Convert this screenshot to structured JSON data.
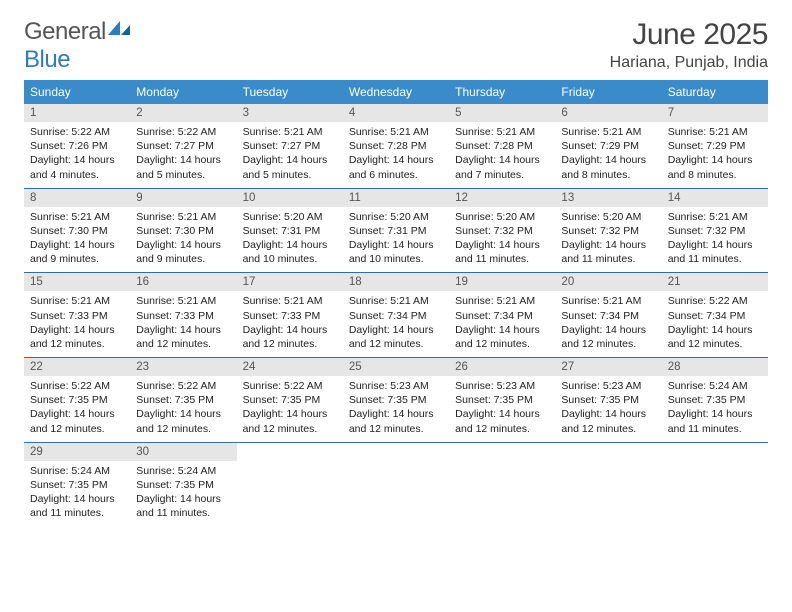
{
  "brand": {
    "part1": "General",
    "part2": "Blue"
  },
  "title": "June 2025",
  "subtitle": "Hariana, Punjab, India",
  "colors": {
    "header_bg": "#3a8bc9",
    "header_text": "#ffffff",
    "daynum_bg": "#e6e6e6",
    "divider": "#2f6fa8",
    "logo_gray": "#555555",
    "logo_blue": "#2f7bbf"
  },
  "weekdays": [
    "Sunday",
    "Monday",
    "Tuesday",
    "Wednesday",
    "Thursday",
    "Friday",
    "Saturday"
  ],
  "weeks": [
    [
      {
        "n": "1",
        "sr": "Sunrise: 5:22 AM",
        "ss": "Sunset: 7:26 PM",
        "dl": "Daylight: 14 hours and 4 minutes."
      },
      {
        "n": "2",
        "sr": "Sunrise: 5:22 AM",
        "ss": "Sunset: 7:27 PM",
        "dl": "Daylight: 14 hours and 5 minutes."
      },
      {
        "n": "3",
        "sr": "Sunrise: 5:21 AM",
        "ss": "Sunset: 7:27 PM",
        "dl": "Daylight: 14 hours and 5 minutes."
      },
      {
        "n": "4",
        "sr": "Sunrise: 5:21 AM",
        "ss": "Sunset: 7:28 PM",
        "dl": "Daylight: 14 hours and 6 minutes."
      },
      {
        "n": "5",
        "sr": "Sunrise: 5:21 AM",
        "ss": "Sunset: 7:28 PM",
        "dl": "Daylight: 14 hours and 7 minutes."
      },
      {
        "n": "6",
        "sr": "Sunrise: 5:21 AM",
        "ss": "Sunset: 7:29 PM",
        "dl": "Daylight: 14 hours and 8 minutes."
      },
      {
        "n": "7",
        "sr": "Sunrise: 5:21 AM",
        "ss": "Sunset: 7:29 PM",
        "dl": "Daylight: 14 hours and 8 minutes."
      }
    ],
    [
      {
        "n": "8",
        "sr": "Sunrise: 5:21 AM",
        "ss": "Sunset: 7:30 PM",
        "dl": "Daylight: 14 hours and 9 minutes."
      },
      {
        "n": "9",
        "sr": "Sunrise: 5:21 AM",
        "ss": "Sunset: 7:30 PM",
        "dl": "Daylight: 14 hours and 9 minutes."
      },
      {
        "n": "10",
        "sr": "Sunrise: 5:20 AM",
        "ss": "Sunset: 7:31 PM",
        "dl": "Daylight: 14 hours and 10 minutes."
      },
      {
        "n": "11",
        "sr": "Sunrise: 5:20 AM",
        "ss": "Sunset: 7:31 PM",
        "dl": "Daylight: 14 hours and 10 minutes."
      },
      {
        "n": "12",
        "sr": "Sunrise: 5:20 AM",
        "ss": "Sunset: 7:32 PM",
        "dl": "Daylight: 14 hours and 11 minutes."
      },
      {
        "n": "13",
        "sr": "Sunrise: 5:20 AM",
        "ss": "Sunset: 7:32 PM",
        "dl": "Daylight: 14 hours and 11 minutes."
      },
      {
        "n": "14",
        "sr": "Sunrise: 5:21 AM",
        "ss": "Sunset: 7:32 PM",
        "dl": "Daylight: 14 hours and 11 minutes."
      }
    ],
    [
      {
        "n": "15",
        "sr": "Sunrise: 5:21 AM",
        "ss": "Sunset: 7:33 PM",
        "dl": "Daylight: 14 hours and 12 minutes."
      },
      {
        "n": "16",
        "sr": "Sunrise: 5:21 AM",
        "ss": "Sunset: 7:33 PM",
        "dl": "Daylight: 14 hours and 12 minutes."
      },
      {
        "n": "17",
        "sr": "Sunrise: 5:21 AM",
        "ss": "Sunset: 7:33 PM",
        "dl": "Daylight: 14 hours and 12 minutes."
      },
      {
        "n": "18",
        "sr": "Sunrise: 5:21 AM",
        "ss": "Sunset: 7:34 PM",
        "dl": "Daylight: 14 hours and 12 minutes."
      },
      {
        "n": "19",
        "sr": "Sunrise: 5:21 AM",
        "ss": "Sunset: 7:34 PM",
        "dl": "Daylight: 14 hours and 12 minutes."
      },
      {
        "n": "20",
        "sr": "Sunrise: 5:21 AM",
        "ss": "Sunset: 7:34 PM",
        "dl": "Daylight: 14 hours and 12 minutes."
      },
      {
        "n": "21",
        "sr": "Sunrise: 5:22 AM",
        "ss": "Sunset: 7:34 PM",
        "dl": "Daylight: 14 hours and 12 minutes."
      }
    ],
    [
      {
        "n": "22",
        "sr": "Sunrise: 5:22 AM",
        "ss": "Sunset: 7:35 PM",
        "dl": "Daylight: 14 hours and 12 minutes."
      },
      {
        "n": "23",
        "sr": "Sunrise: 5:22 AM",
        "ss": "Sunset: 7:35 PM",
        "dl": "Daylight: 14 hours and 12 minutes."
      },
      {
        "n": "24",
        "sr": "Sunrise: 5:22 AM",
        "ss": "Sunset: 7:35 PM",
        "dl": "Daylight: 14 hours and 12 minutes."
      },
      {
        "n": "25",
        "sr": "Sunrise: 5:23 AM",
        "ss": "Sunset: 7:35 PM",
        "dl": "Daylight: 14 hours and 12 minutes."
      },
      {
        "n": "26",
        "sr": "Sunrise: 5:23 AM",
        "ss": "Sunset: 7:35 PM",
        "dl": "Daylight: 14 hours and 12 minutes."
      },
      {
        "n": "27",
        "sr": "Sunrise: 5:23 AM",
        "ss": "Sunset: 7:35 PM",
        "dl": "Daylight: 14 hours and 12 minutes."
      },
      {
        "n": "28",
        "sr": "Sunrise: 5:24 AM",
        "ss": "Sunset: 7:35 PM",
        "dl": "Daylight: 14 hours and 11 minutes."
      }
    ],
    [
      {
        "n": "29",
        "sr": "Sunrise: 5:24 AM",
        "ss": "Sunset: 7:35 PM",
        "dl": "Daylight: 14 hours and 11 minutes."
      },
      {
        "n": "30",
        "sr": "Sunrise: 5:24 AM",
        "ss": "Sunset: 7:35 PM",
        "dl": "Daylight: 14 hours and 11 minutes."
      },
      {
        "empty": true
      },
      {
        "empty": true
      },
      {
        "empty": true
      },
      {
        "empty": true
      },
      {
        "empty": true
      }
    ]
  ]
}
